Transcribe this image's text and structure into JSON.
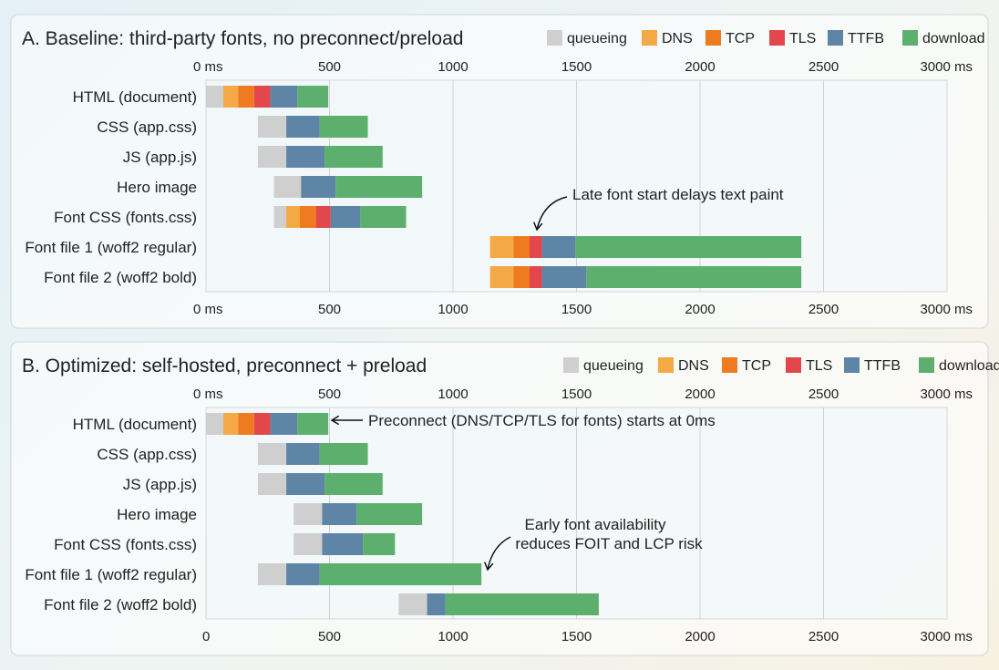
{
  "chart_data": [
    {
      "type": "waterfall",
      "title": "A.  Baseline: third-party fonts, no preconnect/preload",
      "legend": [
        "queueing",
        "DNS",
        "TCP",
        "TLS",
        "TTFB",
        "download"
      ],
      "legend_placement": "top-right",
      "xlim": [
        0,
        3000
      ],
      "x_unit": "ms",
      "grid": true,
      "top_ticks": [
        {
          "v": 0,
          "label": "0 ms"
        },
        {
          "v": 500,
          "label": "500"
        },
        {
          "v": 1000,
          "label": "1000"
        },
        {
          "v": 1500,
          "label": "1500"
        },
        {
          "v": 2000,
          "label": "2000"
        },
        {
          "v": 2500,
          "label": "2500"
        },
        {
          "v": 3000,
          "label": "3000 ms"
        }
      ],
      "bottom_ticks": [
        {
          "v": 0,
          "label": "0 ms"
        },
        {
          "v": 500,
          "label": "500"
        },
        {
          "v": 1000,
          "label": "1000"
        },
        {
          "v": 1500,
          "label": "1500"
        },
        {
          "v": 2000,
          "label": "2000"
        },
        {
          "v": 2500,
          "label": "2500"
        },
        {
          "v": 3000,
          "label": "3000 ms"
        }
      ],
      "rows": [
        {
          "label": "HTML (document)",
          "segments": [
            [
              "queueing",
              0,
              70
            ],
            [
              "DNS",
              70,
              130
            ],
            [
              "TCP",
              130,
              195
            ],
            [
              "TLS",
              195,
              260
            ],
            [
              "TTFB",
              260,
              370
            ],
            [
              "download",
              370,
              495
            ]
          ]
        },
        {
          "label": "CSS (app.css)",
          "segments": [
            [
              "queueing",
              210,
              325
            ],
            [
              "TTFB",
              325,
              460
            ],
            [
              "download",
              460,
              655
            ]
          ]
        },
        {
          "label": "JS (app.js)",
          "segments": [
            [
              "queueing",
              210,
              325
            ],
            [
              "TTFB",
              325,
              480
            ],
            [
              "download",
              480,
              715
            ]
          ]
        },
        {
          "label": "Hero image",
          "segments": [
            [
              "queueing",
              275,
              385
            ],
            [
              "TTFB",
              385,
              525
            ],
            [
              "download",
              525,
              875
            ]
          ]
        },
        {
          "label": "Font CSS (fonts.css)",
          "segments": [
            [
              "queueing",
              275,
              325
            ],
            [
              "DNS",
              325,
              380
            ],
            [
              "TCP",
              380,
              445
            ],
            [
              "TLS",
              445,
              505
            ],
            [
              "TTFB",
              505,
              625
            ],
            [
              "download",
              625,
              810
            ]
          ]
        },
        {
          "label": "Font file 1 (woff2 regular)",
          "segments": [
            [
              "DNS",
              1150,
              1245
            ],
            [
              "TCP",
              1245,
              1310
            ],
            [
              "TLS",
              1310,
              1360
            ],
            [
              "TTFB",
              1360,
              1495
            ],
            [
              "download",
              1495,
              2410
            ]
          ]
        },
        {
          "label": "Font file 2 (woff2 bold)",
          "segments": [
            [
              "DNS",
              1150,
              1245
            ],
            [
              "TCP",
              1245,
              1310
            ],
            [
              "TLS",
              1310,
              1360
            ],
            [
              "TTFB",
              1360,
              1540
            ],
            [
              "download",
              1540,
              2410
            ]
          ]
        }
      ],
      "annotations": [
        "Late font start delays text paint"
      ]
    },
    {
      "type": "waterfall",
      "title": "B.  Optimized: self-hosted, preconnect + preload",
      "legend": [
        "queueing",
        "DNS",
        "TCP",
        "TLS",
        "TTFB",
        "download"
      ],
      "legend_placement": "top-right",
      "xlim": [
        0,
        3000
      ],
      "x_unit": "ms",
      "grid": true,
      "top_ticks": [
        {
          "v": 0,
          "label": "0 ms"
        },
        {
          "v": 500,
          "label": "500"
        },
        {
          "v": 1000,
          "label": "1000"
        },
        {
          "v": 1500,
          "label": "1500"
        },
        {
          "v": 2000,
          "label": "2000"
        },
        {
          "v": 2500,
          "label": "2500"
        },
        {
          "v": 3000,
          "label": "3000 ms"
        }
      ],
      "bottom_ticks": [
        {
          "v": 0,
          "label": "0"
        },
        {
          "v": 500,
          "label": "500"
        },
        {
          "v": 1000,
          "label": "1000"
        },
        {
          "v": 1500,
          "label": "1500"
        },
        {
          "v": 2000,
          "label": "2000"
        },
        {
          "v": 2500,
          "label": "2500"
        },
        {
          "v": 3000,
          "label": "3000 ms"
        }
      ],
      "rows": [
        {
          "label": "HTML (document)",
          "segments": [
            [
              "queueing",
              0,
              70
            ],
            [
              "DNS",
              70,
              130
            ],
            [
              "TCP",
              130,
              195
            ],
            [
              "TLS",
              195,
              260
            ],
            [
              "TTFB",
              260,
              370
            ],
            [
              "download",
              370,
              495
            ]
          ]
        },
        {
          "label": "CSS (app.css)",
          "segments": [
            [
              "queueing",
              210,
              325
            ],
            [
              "TTFB",
              325,
              460
            ],
            [
              "download",
              460,
              655
            ]
          ]
        },
        {
          "label": "JS (app.js)",
          "segments": [
            [
              "queueing",
              210,
              325
            ],
            [
              "TTFB",
              325,
              480
            ],
            [
              "download",
              480,
              715
            ]
          ]
        },
        {
          "label": "Hero image",
          "segments": [
            [
              "queueing",
              355,
              470
            ],
            [
              "TTFB",
              470,
              610
            ],
            [
              "download",
              610,
              875
            ]
          ]
        },
        {
          "label": "Font CSS (fonts.css)",
          "segments": [
            [
              "queueing",
              355,
              470
            ],
            [
              "TTFB",
              470,
              635
            ],
            [
              "download",
              635,
              765
            ]
          ]
        },
        {
          "label": "Font file 1 (woff2 regular)",
          "segments": [
            [
              "queueing",
              210,
              325
            ],
            [
              "TTFB",
              325,
              460
            ],
            [
              "download",
              460,
              1115
            ]
          ]
        },
        {
          "label": "Font file 2 (woff2 bold)",
          "segments": [
            [
              "queueing",
              780,
              895
            ],
            [
              "TTFB",
              895,
              970
            ],
            [
              "download",
              970,
              1590
            ]
          ]
        }
      ],
      "annotations": [
        "Preconnect (DNS/TCP/TLS for fonts) starts at 0ms",
        "Early font availability",
        "reduces FOIT and LCP risk"
      ]
    }
  ],
  "colors": {
    "queueing": "#cfcfcf",
    "DNS": "#f5a946",
    "TCP": "#ee7b1f",
    "TLS": "#e2484b",
    "TTFB": "#5f85a6",
    "download": "#5daf6e"
  }
}
